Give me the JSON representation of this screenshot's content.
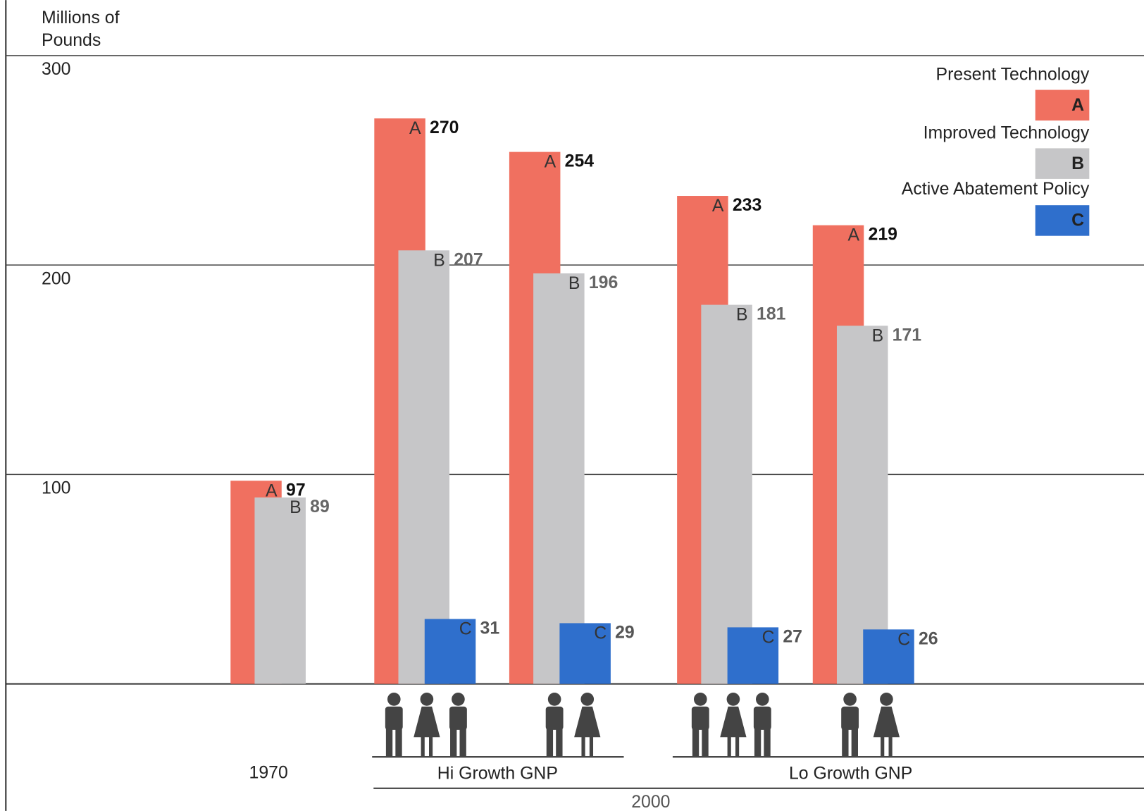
{
  "chart_data": {
    "type": "bar",
    "y_label": "Millions of Pounds",
    "categories": [
      "1970",
      null,
      null,
      null,
      null
    ],
    "annotations": [
      "Hi Growth GNP",
      "Lo Growth GNP",
      "2000"
    ],
    "series": [
      {
        "name": "Present Technology",
        "letter": "A",
        "color": "#f07060",
        "values": [
          97,
          270,
          254,
          233,
          219
        ]
      },
      {
        "name": "Improved Technology",
        "letter": "B",
        "color": "#c6c6c8",
        "values": [
          89,
          207,
          196,
          181,
          171
        ]
      },
      {
        "name": "Active Abatement Policy",
        "letter": "C",
        "color": "#2f6fcc",
        "values": [
          null,
          31,
          29,
          27,
          26
        ]
      }
    ],
    "ylim": [
      0,
      300
    ],
    "yticks": [
      100,
      200,
      300
    ],
    "grid": true,
    "legend": "top-right"
  }
}
